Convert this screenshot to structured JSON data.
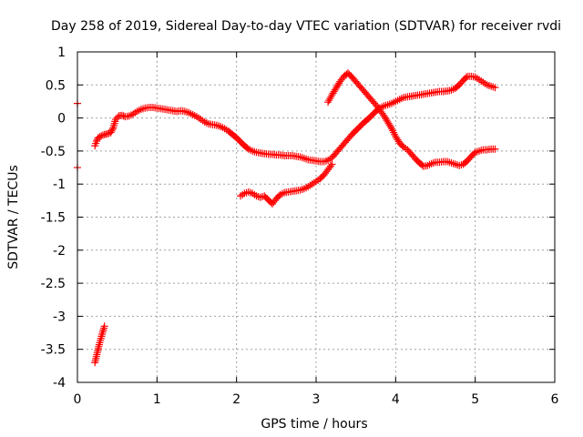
{
  "chart_data": {
    "type": "scatter",
    "title": "Day 258 of 2019, Sidereal Day-to-day VTEC variation (SDTVAR) for receiver rvdi",
    "xlabel": "GPS time / hours",
    "ylabel": "SDTVAR / TECUs",
    "xlim": [
      0,
      6
    ],
    "ylim": [
      -4,
      1
    ],
    "x_ticks": [
      "0",
      "1",
      "2",
      "3",
      "4",
      "5",
      "6"
    ],
    "y_ticks": [
      "1",
      "0.5",
      "0",
      "-0.5",
      "-1",
      "-1.5",
      "-2",
      "-2.5",
      "-3",
      "-3.5",
      "-4"
    ],
    "grid": true,
    "marker": "+",
    "series_color": "#ff0000",
    "series": [
      {
        "x": [
          -0.0,
          -0.0
        ],
        "y": [
          0.22,
          -0.75
        ]
      },
      {
        "x": [
          0.22,
          0.25,
          0.28,
          0.31,
          0.34
        ],
        "y": [
          -3.7,
          -3.55,
          -3.4,
          -3.27,
          -3.15
        ]
      },
      {
        "x": [
          0.22,
          0.24,
          0.26,
          0.3,
          0.34,
          0.38,
          0.42,
          0.45,
          0.48,
          0.52,
          0.56,
          0.6,
          0.65,
          0.7,
          0.75,
          0.8,
          0.85,
          0.9,
          0.95,
          1.0,
          1.05,
          1.1,
          1.15,
          1.2,
          1.25,
          1.3,
          1.35,
          1.4,
          1.45,
          1.5,
          1.55,
          1.6,
          1.65,
          1.7,
          1.75,
          1.8,
          1.85,
          1.9,
          1.95,
          2.0,
          2.05,
          2.1,
          2.15,
          2.2,
          2.25,
          2.3,
          2.35,
          2.4,
          2.45,
          2.5,
          2.55,
          2.6,
          2.65,
          2.7,
          2.75,
          2.8,
          2.85,
          2.9,
          2.95,
          3.0,
          3.05,
          3.1,
          3.15,
          3.2,
          3.25,
          3.3,
          3.35,
          3.4,
          3.45,
          3.5,
          3.55,
          3.6,
          3.65,
          3.7,
          3.75,
          3.8,
          3.85,
          3.9,
          3.95,
          4.0,
          4.05,
          4.1,
          4.15,
          4.2,
          4.25,
          4.3,
          4.35,
          4.4,
          4.45,
          4.5,
          4.55,
          4.6,
          4.65,
          4.7,
          4.75,
          4.8,
          4.85,
          4.9,
          4.95,
          5.0,
          5.05,
          5.1,
          5.15,
          5.2,
          5.25
        ],
        "y": [
          -0.42,
          -0.35,
          -0.3,
          -0.27,
          -0.25,
          -0.24,
          -0.22,
          -0.15,
          -0.02,
          0.03,
          0.04,
          0.02,
          0.03,
          0.06,
          0.1,
          0.13,
          0.15,
          0.16,
          0.16,
          0.15,
          0.14,
          0.13,
          0.12,
          0.11,
          0.1,
          0.11,
          0.1,
          0.08,
          0.05,
          0.02,
          -0.02,
          -0.06,
          -0.09,
          -0.1,
          -0.11,
          -0.13,
          -0.16,
          -0.2,
          -0.25,
          -0.3,
          -0.36,
          -0.42,
          -0.47,
          -0.5,
          -0.52,
          -0.53,
          -0.54,
          -0.55,
          -0.55,
          -0.56,
          -0.56,
          -0.57,
          -0.57,
          -0.57,
          -0.58,
          -0.59,
          -0.61,
          -0.63,
          -0.64,
          -0.65,
          -0.66,
          -0.66,
          -0.64,
          -0.6,
          -0.53,
          -0.46,
          -0.39,
          -0.32,
          -0.25,
          -0.19,
          -0.13,
          -0.07,
          -0.02,
          0.04,
          0.1,
          0.15,
          0.18,
          0.2,
          0.22,
          0.25,
          0.28,
          0.31,
          0.32,
          0.33,
          0.34,
          0.35,
          0.36,
          0.37,
          0.38,
          0.39,
          0.4,
          0.4,
          0.41,
          0.42,
          0.45,
          0.5,
          0.57,
          0.63,
          0.63,
          0.62,
          0.58,
          0.54,
          0.5,
          0.48,
          0.46
        ]
      },
      {
        "x": [
          2.05,
          2.1,
          2.15,
          2.2,
          2.25,
          2.3,
          2.35,
          2.4,
          2.45,
          2.5,
          2.55,
          2.6,
          2.65,
          2.7,
          2.75,
          2.8,
          2.85,
          2.9,
          2.95,
          3.0,
          3.05,
          3.1,
          3.15,
          3.2
        ],
        "y": [
          -1.18,
          -1.14,
          -1.12,
          -1.14,
          -1.18,
          -1.2,
          -1.18,
          -1.24,
          -1.3,
          -1.22,
          -1.16,
          -1.13,
          -1.12,
          -1.11,
          -1.1,
          -1.09,
          -1.07,
          -1.04,
          -1.0,
          -0.96,
          -0.92,
          -0.86,
          -0.78,
          -0.7
        ]
      },
      {
        "x": [
          3.15,
          3.2,
          3.25,
          3.3,
          3.35,
          3.4,
          3.45,
          3.5,
          3.55,
          3.6,
          3.65,
          3.7,
          3.75,
          3.8,
          3.85,
          3.9,
          3.95,
          4.0,
          4.05,
          4.1,
          4.15,
          4.2,
          4.25,
          4.3,
          4.35,
          4.4,
          4.45,
          4.5,
          4.55,
          4.6,
          4.65,
          4.7,
          4.75,
          4.8,
          4.85,
          4.9,
          4.95,
          5.0,
          5.05,
          5.1,
          5.15,
          5.2,
          5.25
        ],
        "y": [
          0.24,
          0.35,
          0.45,
          0.55,
          0.63,
          0.68,
          0.62,
          0.55,
          0.48,
          0.41,
          0.34,
          0.27,
          0.2,
          0.12,
          0.04,
          -0.06,
          -0.16,
          -0.28,
          -0.38,
          -0.44,
          -0.48,
          -0.55,
          -0.62,
          -0.68,
          -0.73,
          -0.72,
          -0.69,
          -0.67,
          -0.67,
          -0.66,
          -0.66,
          -0.68,
          -0.7,
          -0.72,
          -0.7,
          -0.65,
          -0.58,
          -0.52,
          -0.5,
          -0.48,
          -0.48,
          -0.47,
          -0.47
        ]
      }
    ]
  }
}
